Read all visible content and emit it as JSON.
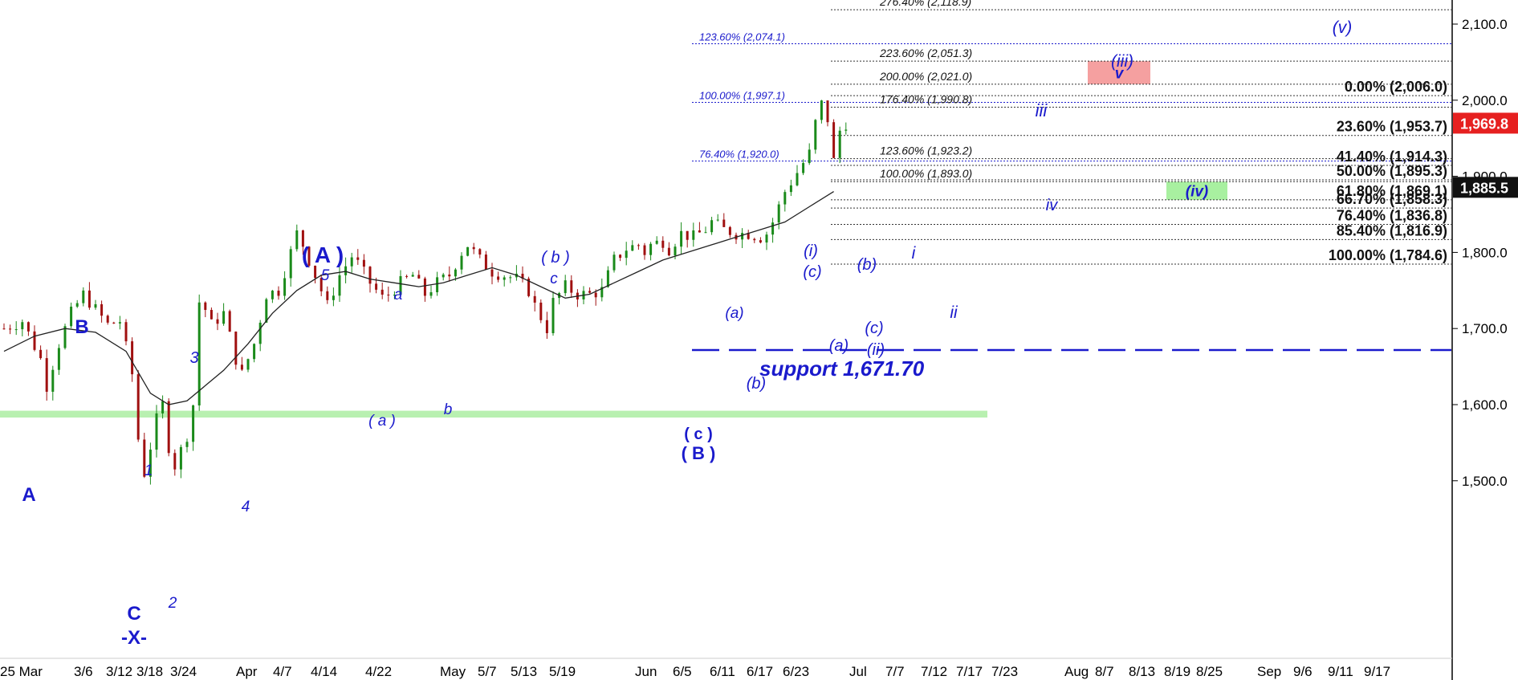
{
  "chart_data": {
    "type": "candlestick",
    "title": "",
    "xlabel": "",
    "ylabel": "",
    "ylim": [
      1420,
      2130
    ],
    "y_ticks": [
      1500,
      1600,
      1700,
      1800,
      1900,
      2000,
      2100
    ],
    "y_tick_labels": [
      "1,500.0",
      "1,600.0",
      "1,700.0",
      "1,800.0",
      "1,900.0",
      "2,000.0",
      "2,100.0"
    ],
    "x_labels": [
      "25 Mar",
      "3/6",
      "3/12",
      "3/18",
      "3/24",
      "Apr",
      "4/7",
      "4/14",
      "4/22",
      "May",
      "5/7",
      "5/13",
      "5/19",
      "Jun",
      "6/5",
      "6/11",
      "6/17",
      "6/23",
      "Jul",
      "7/7",
      "7/12",
      "7/17",
      "7/23",
      "Aug",
      "8/7",
      "8/13",
      "8/19",
      "8/25",
      "Sep",
      "9/6",
      "9/11",
      "9/17"
    ],
    "price_path": [
      [
        0,
        1700
      ],
      [
        3,
        1710
      ],
      [
        6,
        1660
      ],
      [
        7,
        1625
      ],
      [
        9,
        1680
      ],
      [
        11,
        1720
      ],
      [
        13,
        1745
      ],
      [
        15,
        1725
      ],
      [
        17,
        1705
      ],
      [
        19,
        1710
      ],
      [
        21,
        1640
      ],
      [
        22,
        1555
      ],
      [
        23,
        1510
      ],
      [
        25,
        1580
      ],
      [
        26,
        1600
      ],
      [
        27,
        1545
      ],
      [
        28,
        1520
      ],
      [
        30,
        1560
      ],
      [
        31,
        1600
      ],
      [
        32,
        1735
      ],
      [
        33,
        1725
      ],
      [
        34,
        1705
      ],
      [
        36,
        1720
      ],
      [
        38,
        1660
      ],
      [
        39,
        1640
      ],
      [
        41,
        1680
      ],
      [
        43,
        1745
      ],
      [
        45,
        1750
      ],
      [
        47,
        1800
      ],
      [
        48,
        1825
      ],
      [
        49,
        1810
      ],
      [
        51,
        1770
      ],
      [
        52,
        1750
      ],
      [
        53,
        1730
      ],
      [
        55,
        1770
      ],
      [
        57,
        1795
      ],
      [
        58,
        1785
      ],
      [
        60,
        1760
      ],
      [
        62,
        1740
      ],
      [
        63,
        1745
      ],
      [
        65,
        1760
      ],
      [
        67,
        1770
      ],
      [
        69,
        1745
      ],
      [
        71,
        1760
      ],
      [
        73,
        1770
      ],
      [
        75,
        1800
      ],
      [
        76,
        1810
      ],
      [
        78,
        1790
      ],
      [
        80,
        1775
      ],
      [
        82,
        1770
      ],
      [
        84,
        1765
      ],
      [
        86,
        1750
      ],
      [
        87,
        1730
      ],
      [
        88,
        1715
      ],
      [
        89,
        1700
      ],
      [
        90,
        1735
      ],
      [
        92,
        1755
      ],
      [
        94,
        1745
      ],
      [
        96,
        1745
      ],
      [
        98,
        1750
      ],
      [
        100,
        1790
      ],
      [
        102,
        1805
      ],
      [
        104,
        1810
      ],
      [
        105,
        1800
      ],
      [
        106,
        1810
      ],
      [
        108,
        1815
      ],
      [
        109,
        1805
      ],
      [
        111,
        1825
      ],
      [
        113,
        1820
      ],
      [
        115,
        1830
      ],
      [
        116,
        1840
      ],
      [
        118,
        1830
      ],
      [
        120,
        1825
      ],
      [
        122,
        1825
      ],
      [
        124,
        1820
      ],
      [
        125,
        1825
      ],
      [
        126,
        1840
      ],
      [
        128,
        1880
      ],
      [
        130,
        1905
      ],
      [
        132,
        1930
      ],
      [
        133,
        1970
      ],
      [
        134,
        1995
      ],
      [
        135,
        1975
      ],
      [
        136,
        1920
      ],
      [
        137,
        1960
      ],
      [
        138,
        1970
      ]
    ],
    "moving_average": [
      [
        0,
        1670
      ],
      [
        5,
        1690
      ],
      [
        10,
        1700
      ],
      [
        15,
        1695
      ],
      [
        20,
        1670
      ],
      [
        24,
        1615
      ],
      [
        27,
        1600
      ],
      [
        30,
        1605
      ],
      [
        33,
        1625
      ],
      [
        36,
        1645
      ],
      [
        40,
        1680
      ],
      [
        44,
        1720
      ],
      [
        48,
        1750
      ],
      [
        52,
        1770
      ],
      [
        56,
        1775
      ],
      [
        60,
        1765
      ],
      [
        64,
        1760
      ],
      [
        68,
        1755
      ],
      [
        72,
        1760
      ],
      [
        76,
        1770
      ],
      [
        80,
        1780
      ],
      [
        84,
        1770
      ],
      [
        88,
        1755
      ],
      [
        92,
        1740
      ],
      [
        96,
        1745
      ],
      [
        100,
        1760
      ],
      [
        104,
        1775
      ],
      [
        108,
        1790
      ],
      [
        112,
        1800
      ],
      [
        116,
        1810
      ],
      [
        120,
        1820
      ],
      [
        124,
        1830
      ],
      [
        128,
        1840
      ],
      [
        132,
        1860
      ],
      [
        136,
        1880
      ]
    ],
    "last_price": {
      "label": "1,969.8",
      "value": 1969.8,
      "color": "#e62020"
    },
    "close_marker": {
      "label": "1,885.5",
      "value": 1885.5,
      "color": "#111111"
    },
    "support": {
      "label": "support 1,671.70",
      "value": 1671.7,
      "color": "#1a1acc"
    },
    "support_zone": {
      "from": 1583,
      "to": 1592,
      "color": "#b8f0b0"
    },
    "fib_blue_left": [
      {
        "label": "123.60% (2,074.1)",
        "value": 2074.1
      },
      {
        "label": "100.00% (1,997.1)",
        "value": 1997.1
      },
      {
        "label": "76.40% (1,920.0)",
        "value": 1920.0
      }
    ],
    "fib_black_small": [
      {
        "label": "276.40% (2,118.9)",
        "value": 2118.9
      },
      {
        "label": "223.60% (2,051.3)",
        "value": 2051.3
      },
      {
        "label": "200.00% (2,021.0)",
        "value": 2021.0
      },
      {
        "label": "176.40% (1,990.8)",
        "value": 1990.8
      },
      {
        "label": "123.60% (1,923.2)",
        "value": 1923.2
      },
      {
        "label": "100.00% (1,893.0)",
        "value": 1893.0
      }
    ],
    "fib_black_big": [
      {
        "label": "0.00% (2,006.0)",
        "value": 2006.0
      },
      {
        "label": "23.60% (1,953.7)",
        "value": 1953.7
      },
      {
        "label": "41.40% (1,914.3)",
        "value": 1914.3
      },
      {
        "label": "50.00% (1,895.3)",
        "value": 1895.3
      },
      {
        "label": "61.80% (1,869.1)",
        "value": 1869.1
      },
      {
        "label": "66.70% (1,858.3)",
        "value": 1858.3
      },
      {
        "label": "76.40% (1,836.8)",
        "value": 1836.8
      },
      {
        "label": "85.40% (1,816.9)",
        "value": 1816.9
      },
      {
        "label": "100.00% (1,784.6)",
        "value": 1784.6
      }
    ],
    "target_boxes": [
      {
        "label": "v",
        "from": 2021.0,
        "to": 2051.3,
        "color": "#f5a0a0"
      },
      {
        "label": "(iv)",
        "from": 1869.1,
        "to": 1893.0,
        "color": "#a8f0a0"
      }
    ],
    "wave_labels": [
      {
        "text": "A"
      },
      {
        "text": "B"
      },
      {
        "text": "C"
      },
      {
        "text": "-X-"
      },
      {
        "text": "1"
      },
      {
        "text": "2"
      },
      {
        "text": "3"
      },
      {
        "text": "4"
      },
      {
        "text": "5"
      },
      {
        "text": "( A )"
      },
      {
        "text": "a"
      },
      {
        "text": "( a )"
      },
      {
        "text": "b"
      },
      {
        "text": "( b )"
      },
      {
        "text": "c"
      },
      {
        "text": "( c )"
      },
      {
        "text": "( B )"
      },
      {
        "text": "(a)"
      },
      {
        "text": "(b)"
      },
      {
        "text": "(i)"
      },
      {
        "text": "(c)"
      },
      {
        "text": "(a)"
      },
      {
        "text": "(b)"
      },
      {
        "text": "(c)"
      },
      {
        "text": "(ii)"
      },
      {
        "text": "i"
      },
      {
        "text": "ii"
      },
      {
        "text": "iii"
      },
      {
        "text": "iv"
      },
      {
        "text": "(iii)"
      },
      {
        "text": "(v)"
      }
    ]
  }
}
